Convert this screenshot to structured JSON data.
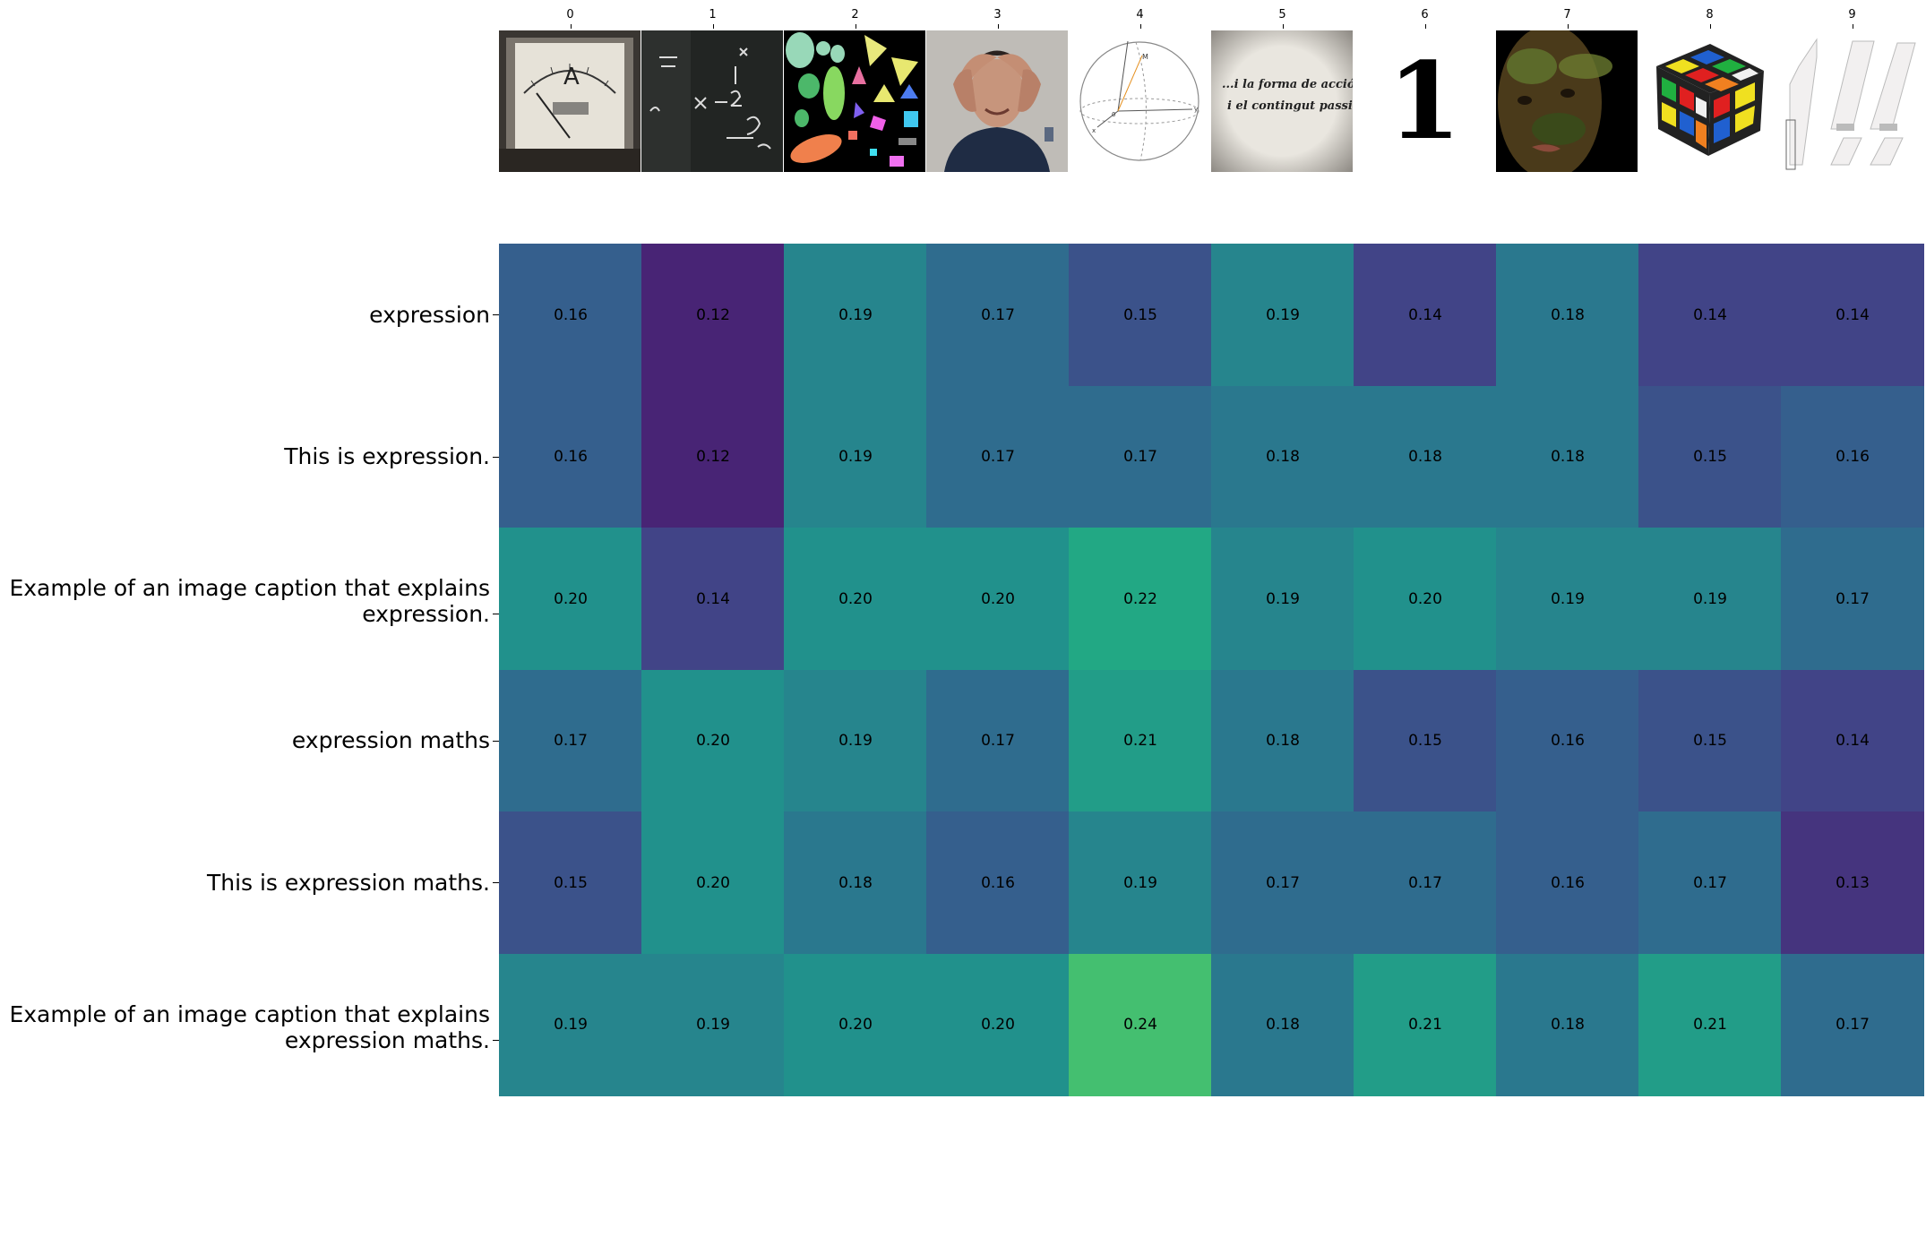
{
  "chart_data": {
    "type": "heatmap",
    "title": "",
    "xlabel": "",
    "ylabel": "",
    "colormap": "viridis",
    "color_range": [
      0.1,
      0.3
    ],
    "x_tick_position": "top",
    "columns": [
      "0",
      "1",
      "2",
      "3",
      "4",
      "5",
      "6",
      "7",
      "8",
      "9"
    ],
    "column_images": [
      "ammeter-gauge-photo",
      "chalkboard-math-photo",
      "colorful-shapes-illustration",
      "man-holding-head-photo",
      "3d-axes-sphere-diagram",
      "handwritten-quote-image",
      "digit-one-image",
      "camouflage-face-photo",
      "rubiks-cube-photo",
      "transparent-blocks-illustration"
    ],
    "rows": [
      "expression",
      "This is expression.",
      "Example of an image caption that explains\nexpression.",
      "expression maths",
      "This is expression maths.",
      "Example of an image caption that explains\nexpression maths."
    ],
    "values": [
      [
        0.16,
        0.12,
        0.19,
        0.17,
        0.15,
        0.19,
        0.14,
        0.18,
        0.14,
        0.14
      ],
      [
        0.16,
        0.12,
        0.19,
        0.17,
        0.17,
        0.18,
        0.18,
        0.18,
        0.15,
        0.16
      ],
      [
        0.2,
        0.14,
        0.2,
        0.2,
        0.22,
        0.19,
        0.2,
        0.19,
        0.19,
        0.17
      ],
      [
        0.17,
        0.2,
        0.19,
        0.17,
        0.21,
        0.18,
        0.15,
        0.16,
        0.15,
        0.14
      ],
      [
        0.15,
        0.2,
        0.18,
        0.16,
        0.19,
        0.17,
        0.17,
        0.16,
        0.17,
        0.13
      ],
      [
        0.19,
        0.19,
        0.2,
        0.2,
        0.24,
        0.18,
        0.21,
        0.18,
        0.21,
        0.17
      ]
    ],
    "thumb_text": {
      "quote_line1": "...i la forma de acció",
      "quote_line2": "i el contingut passiu...",
      "digit": "1",
      "gauge_letter": "A"
    }
  }
}
